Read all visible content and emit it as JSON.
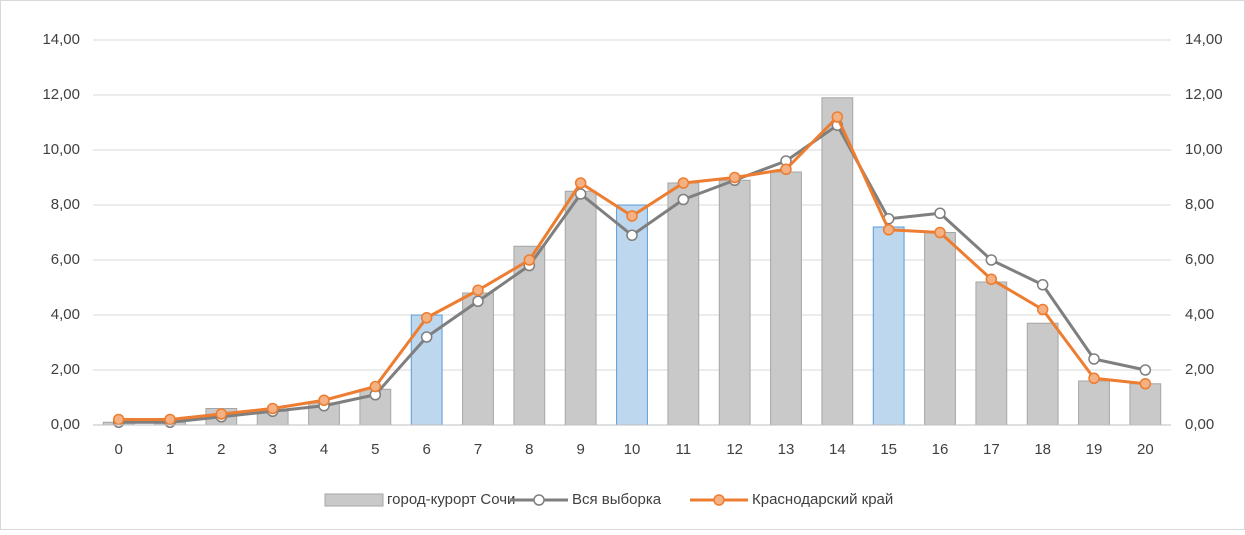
{
  "chart_data": {
    "type": "bar_line",
    "categories": [
      "0",
      "1",
      "2",
      "3",
      "4",
      "5",
      "6",
      "7",
      "8",
      "9",
      "10",
      "11",
      "12",
      "13",
      "14",
      "15",
      "16",
      "17",
      "18",
      "19",
      "20"
    ],
    "series": [
      {
        "name": "город-курорт Сочи",
        "type": "bar",
        "color": "#c9c9c9",
        "colors": [
          "#c9c9c9",
          "#c9c9c9",
          "#c9c9c9",
          "#c9c9c9",
          "#c9c9c9",
          "#c9c9c9",
          "#bdd7ee",
          "#c9c9c9",
          "#c9c9c9",
          "#c9c9c9",
          "#bdd7ee",
          "#c9c9c9",
          "#c9c9c9",
          "#c9c9c9",
          "#c9c9c9",
          "#bdd7ee",
          "#c9c9c9",
          "#c9c9c9",
          "#c9c9c9",
          "#c9c9c9",
          "#c9c9c9"
        ],
        "values": [
          0.1,
          0.1,
          0.6,
          0.5,
          0.8,
          1.3,
          4.0,
          4.8,
          6.5,
          8.5,
          8.0,
          8.8,
          8.9,
          9.2,
          11.9,
          7.2,
          7.0,
          5.2,
          3.7,
          1.6,
          1.5
        ]
      },
      {
        "name": "Вся выборка",
        "type": "line",
        "color": "#7f7f7f",
        "axis": "y2",
        "values": [
          0.1,
          0.1,
          0.3,
          0.5,
          0.7,
          1.1,
          3.2,
          4.5,
          5.8,
          8.4,
          6.9,
          8.2,
          8.9,
          9.6,
          10.9,
          7.5,
          7.7,
          6.0,
          5.1,
          2.4,
          2.0
        ]
      },
      {
        "name": "Краснодарский край",
        "type": "line",
        "color": "#ed7d31",
        "axis": "y2",
        "values": [
          0.2,
          0.2,
          0.4,
          0.6,
          0.9,
          1.4,
          3.9,
          4.9,
          6.0,
          8.8,
          7.6,
          8.8,
          9.0,
          9.3,
          11.2,
          7.1,
          7.0,
          5.3,
          4.2,
          1.7,
          1.5
        ]
      }
    ],
    "ylim": [
      0,
      14
    ],
    "yticks": [
      {
        "value": 0,
        "label": "0,00"
      },
      {
        "value": 2,
        "label": "2,00"
      },
      {
        "value": 4,
        "label": "4,00"
      },
      {
        "value": 6,
        "label": "6,00"
      },
      {
        "value": 8,
        "label": "8,00"
      },
      {
        "value": 10,
        "label": "10,00"
      },
      {
        "value": 12,
        "label": "12,00"
      },
      {
        "value": 14,
        "label": "14,00"
      }
    ],
    "y2lim": [
      0,
      14
    ],
    "y2ticks": [
      {
        "value": 0,
        "label": "0,00"
      },
      {
        "value": 2,
        "label": "2,00"
      },
      {
        "value": 4,
        "label": "4,00"
      },
      {
        "value": 6,
        "label": "6,00"
      },
      {
        "value": 8,
        "label": "8,00"
      },
      {
        "value": 10,
        "label": "10,00"
      },
      {
        "value": 12,
        "label": "12,00"
      },
      {
        "value": 14,
        "label": "14,00"
      }
    ],
    "grid": true,
    "legend": "bottom"
  }
}
